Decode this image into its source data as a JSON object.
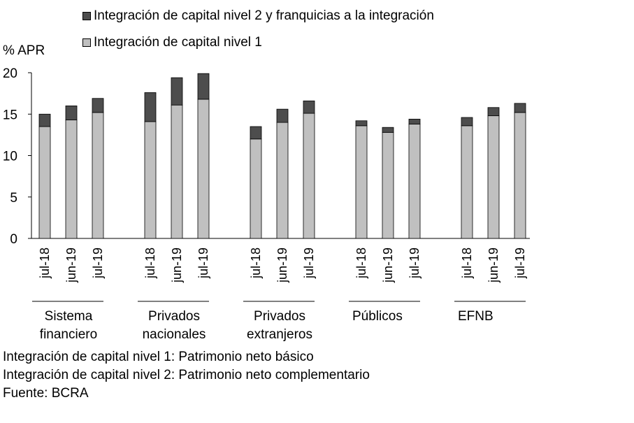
{
  "chart_data": {
    "type": "bar",
    "stacked": true,
    "ylabel": "% APR",
    "ylim": [
      0,
      20
    ],
    "yticks": [
      0,
      5,
      10,
      15,
      20
    ],
    "groups": [
      {
        "label": "Sistema financiero",
        "label_lines": [
          "Sistema",
          "financiero"
        ]
      },
      {
        "label": "Privados nacionales",
        "label_lines": [
          "Privados",
          "nacionales"
        ]
      },
      {
        "label": "Privados extranjeros",
        "label_lines": [
          "Privados",
          "extranjeros"
        ]
      },
      {
        "label": "Públicos",
        "label_lines": [
          "Públicos"
        ]
      },
      {
        "label": "EFNB",
        "label_lines": [
          "EFNB"
        ]
      }
    ],
    "periods": [
      "jul-18",
      "jun-19",
      "jul-19"
    ],
    "series": [
      {
        "name": "Integración de capital nivel 1",
        "color": "#c0c0c0",
        "values": [
          [
            13.5,
            14.3,
            15.2
          ],
          [
            14.1,
            16.1,
            16.8
          ],
          [
            12.0,
            14.0,
            15.1
          ],
          [
            13.6,
            12.8,
            13.8
          ],
          [
            13.6,
            14.8,
            15.2
          ]
        ]
      },
      {
        "name": "Integración de capital nivel 2 y franquicias a la integración",
        "color": "#4d4d4d",
        "values": [
          [
            1.5,
            1.7,
            1.7
          ],
          [
            3.5,
            3.3,
            3.1
          ],
          [
            1.5,
            1.6,
            1.5
          ],
          [
            0.6,
            0.6,
            0.6
          ],
          [
            1.0,
            1.0,
            1.1
          ]
        ]
      }
    ]
  },
  "legend": {
    "tier2": "Integración de capital nivel 2 y franquicias a la integración",
    "tier1": "Integración de capital nivel 1"
  },
  "notes": [
    "Integración de capital nivel 1: Patrimonio neto básico",
    "Integración de capital nivel 2: Patrimonio neto complementario",
    "Fuente: BCRA"
  ],
  "colors": {
    "tier1": "#c0c0c0",
    "tier2": "#4d4d4d"
  }
}
